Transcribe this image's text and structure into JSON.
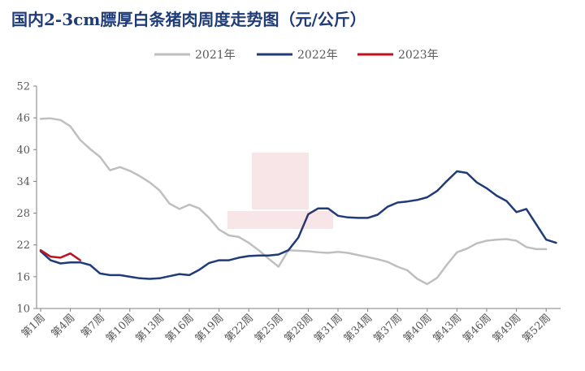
{
  "chart_data": {
    "type": "line",
    "title": "国内2-3cm膘厚白条猪肉周度走势图（元/公斤）",
    "xlabel": "",
    "ylabel": "",
    "ylim": [
      10,
      52
    ],
    "yticks": [
      10,
      16,
      22,
      28,
      34,
      40,
      46,
      52
    ],
    "categories": [
      "第1周",
      "第2周",
      "第3周",
      "第4周",
      "第5周",
      "第6周",
      "第7周",
      "第8周",
      "第9周",
      "第10周",
      "第11周",
      "第12周",
      "第13周",
      "第14周",
      "第15周",
      "第16周",
      "第17周",
      "第18周",
      "第19周",
      "第20周",
      "第21周",
      "第22周",
      "第23周",
      "第24周",
      "第25周",
      "第26周",
      "第27周",
      "第28周",
      "第29周",
      "第30周",
      "第31周",
      "第32周",
      "第33周",
      "第34周",
      "第35周",
      "第36周",
      "第37周",
      "第38周",
      "第39周",
      "第40周",
      "第41周",
      "第42周",
      "第43周",
      "第44周",
      "第45周",
      "第46周",
      "第47周",
      "第48周",
      "第49周",
      "第50周",
      "第51周",
      "第52周",
      "第53周"
    ],
    "xtick_labels": [
      "第1周",
      "第4周",
      "第7周",
      "第10周",
      "第13周",
      "第16周",
      "第19周",
      "第22周",
      "第25周",
      "第28周",
      "第31周",
      "第34周",
      "第37周",
      "第40周",
      "第43周",
      "第46周",
      "第49周",
      "第52周"
    ],
    "legend_position": "top-center",
    "grid": false,
    "series": [
      {
        "name": "2021年",
        "color": "#bfbfbf",
        "values": [
          45.8,
          45.9,
          45.6,
          44.4,
          41.8,
          40.1,
          38.6,
          36.1,
          36.7,
          36.0,
          35.0,
          33.8,
          32.3,
          29.8,
          28.8,
          29.6,
          28.9,
          27.1,
          24.9,
          23.8,
          23.5,
          22.4,
          21.0,
          19.4,
          17.9,
          21.0,
          20.9,
          20.8,
          20.6,
          20.5,
          20.7,
          20.5,
          20.1,
          19.7,
          19.3,
          18.8,
          17.9,
          17.2,
          15.6,
          14.6,
          15.8,
          18.3,
          20.6,
          21.3,
          22.3,
          22.8,
          23.0,
          23.1,
          22.8,
          21.6,
          21.2,
          21.2,
          null
        ]
      },
      {
        "name": "2022年",
        "color": "#1f3b78",
        "values": [
          20.8,
          19.1,
          18.5,
          18.7,
          18.7,
          18.2,
          16.6,
          16.3,
          16.3,
          16.0,
          15.7,
          15.6,
          15.7,
          16.1,
          16.5,
          16.3,
          17.3,
          18.6,
          19.1,
          19.1,
          19.6,
          19.9,
          20.0,
          20.0,
          20.2,
          21.0,
          23.4,
          27.8,
          28.9,
          28.9,
          27.5,
          27.2,
          27.1,
          27.1,
          27.7,
          29.2,
          30.0,
          30.2,
          30.5,
          31.0,
          32.2,
          34.1,
          35.9,
          35.6,
          33.8,
          32.7,
          31.3,
          30.3,
          28.2,
          28.8,
          25.9,
          23.0,
          22.4
        ]
      },
      {
        "name": "2023年",
        "color": "#c0111f",
        "values": [
          21.0,
          19.8,
          19.6,
          20.4,
          19.1,
          null,
          null,
          null,
          null,
          null,
          null,
          null,
          null,
          null,
          null,
          null,
          null,
          null,
          null,
          null,
          null,
          null,
          null,
          null,
          null,
          null,
          null,
          null,
          null,
          null,
          null,
          null,
          null,
          null,
          null,
          null,
          null,
          null,
          null,
          null,
          null,
          null,
          null,
          null,
          null,
          null,
          null,
          null,
          null,
          null,
          null,
          null,
          null
        ]
      }
    ]
  }
}
